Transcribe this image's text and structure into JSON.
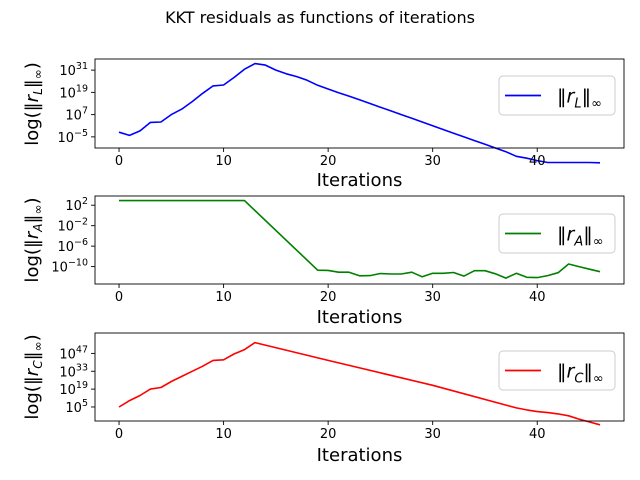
{
  "figure": {
    "title": "KKT residuals as functions of iterations"
  },
  "chart_data": [
    {
      "type": "line",
      "scale": "log",
      "xlabel": "Iterations",
      "ylabel": "log(‖r_L‖∞)",
      "ylabel_sub": "L",
      "xticks": [
        0,
        10,
        20,
        30,
        40
      ],
      "xlim": [
        -2.3,
        48.3
      ],
      "ylim_log10": [
        -11,
        37
      ],
      "yticks_exp": [
        -5,
        7,
        19,
        31
      ],
      "legend": {
        "name": "‖r_L‖∞",
        "sub": "L",
        "placement": "right"
      },
      "grid": false,
      "series": [
        {
          "name": "‖r_L‖∞",
          "color": "#0000ff",
          "x": [
            0,
            1,
            2,
            3,
            4,
            5,
            6,
            7,
            8,
            9,
            10,
            11,
            12,
            13,
            14,
            15,
            16,
            17,
            18,
            19,
            20,
            21,
            22,
            23,
            24,
            25,
            26,
            27,
            28,
            29,
            30,
            31,
            32,
            33,
            34,
            35,
            36,
            37,
            38,
            39,
            40,
            41,
            42,
            43,
            44,
            45,
            46
          ],
          "log10_values": [
            -2.5,
            -4.2,
            -1.8,
            2.8,
            3,
            7,
            10,
            14,
            18.5,
            22.5,
            23,
            27,
            31.5,
            34.5,
            33.7,
            31,
            29,
            27.5,
            25.5,
            22.8,
            20.8,
            18.8,
            17,
            15,
            13,
            11,
            9,
            7,
            5,
            3,
            1,
            -1,
            -3,
            -5,
            -7,
            -9,
            -11,
            -13,
            -15.5,
            -16.5,
            -17.8,
            -18.8,
            -18.8,
            -18.8,
            -18.8,
            -18.8,
            -19
          ]
        }
      ]
    },
    {
      "type": "line",
      "scale": "log",
      "xlabel": "Iterations",
      "ylabel": "log(‖r_A‖∞)",
      "ylabel_sub": "A",
      "xticks": [
        0,
        10,
        20,
        30,
        40
      ],
      "xlim": [
        -2.3,
        48.3
      ],
      "ylim_log10": [
        -13.4,
        3.8
      ],
      "yticks_exp": [
        2,
        -2,
        -6,
        -10
      ],
      "legend": {
        "name": "‖r_A‖∞",
        "sub": "A",
        "placement": "right"
      },
      "grid": false,
      "series": [
        {
          "name": "‖r_A‖∞",
          "color": "#008000",
          "x": [
            0,
            12,
            19,
            20,
            21,
            22,
            23,
            24,
            25,
            26,
            27,
            28,
            29,
            30,
            31,
            32,
            33,
            34,
            35,
            36,
            37,
            38,
            39,
            40,
            41,
            42,
            43,
            44,
            45,
            46
          ],
          "log10_values": [
            2.9,
            2.9,
            -10.7,
            -10.75,
            -11.1,
            -11.1,
            -11.8,
            -11.75,
            -11.35,
            -11.45,
            -11.45,
            -11.1,
            -12,
            -11.3,
            -11.3,
            -11.15,
            -11.85,
            -10.8,
            -10.8,
            -11.4,
            -12.25,
            -11.3,
            -12.1,
            -12.15,
            -11.75,
            -11.2,
            -9.5,
            -10,
            -10.5,
            -11
          ]
        }
      ]
    },
    {
      "type": "line",
      "scale": "log",
      "xlabel": "Iterations",
      "ylabel": "log(‖r_C‖∞)",
      "ylabel_sub": "C",
      "xticks": [
        0,
        10,
        20,
        30,
        40
      ],
      "xlim": [
        -2.3,
        48.3
      ],
      "ylim_log10": [
        -6,
        63
      ],
      "yticks_exp": [
        47,
        33,
        19,
        5
      ],
      "legend": {
        "name": "‖r_C‖∞",
        "sub": "C",
        "placement": "right"
      },
      "grid": false,
      "series": [
        {
          "name": "‖r_C‖∞",
          "color": "#ff0000",
          "x": [
            0,
            1,
            2,
            3,
            4,
            5,
            6,
            7,
            8,
            9,
            10,
            11,
            12,
            13,
            20,
            30,
            38,
            39,
            40,
            41,
            42,
            43,
            44,
            45,
            46
          ],
          "log10_values": [
            5,
            10,
            14,
            19,
            20.3,
            25,
            29,
            33,
            37,
            41.5,
            42,
            46.5,
            50,
            55.5,
            41.5,
            22,
            4.3,
            2.7,
            1.4,
            0.6,
            -0.4,
            -1.9,
            -4.5,
            -6.8,
            -9
          ]
        }
      ]
    }
  ]
}
